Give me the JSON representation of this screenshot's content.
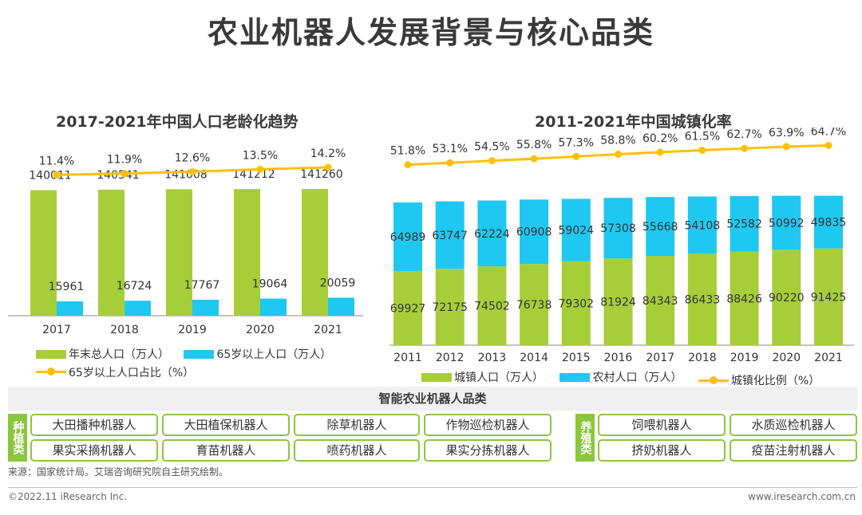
{
  "page": {
    "title": "农业机器人发展背景与核心品类",
    "source": "来源：国家统计局。艾瑞咨询研究院自主研究绘制。",
    "copyright": "©2022.11 iResearch Inc.",
    "website": "www.iresearch.com.cn"
  },
  "colors": {
    "green": "#a6ce39",
    "blue": "#1ec8f0",
    "yellow": "#ffc000",
    "dark_green": "#8cc63f"
  },
  "chart_data": [
    {
      "type": "bar",
      "title": "2017-2021年中国人口老龄化趋势",
      "categories": [
        "2017",
        "2018",
        "2019",
        "2020",
        "2021"
      ],
      "series": [
        {
          "name": "年末总人口（万人）",
          "kind": "bar",
          "values": [
            140011,
            140541,
            141008,
            141212,
            141260
          ]
        },
        {
          "name": "65岁以上人口（万人）",
          "kind": "bar",
          "values": [
            15961,
            16724,
            17767,
            19064,
            20059
          ]
        },
        {
          "name": "65岁以上人口占比（%）",
          "kind": "line",
          "values": [
            11.4,
            11.9,
            12.6,
            13.5,
            14.2
          ],
          "labels": [
            "11.4%",
            "11.9%",
            "12.6%",
            "13.5%",
            "14.2%"
          ]
        }
      ],
      "ylim": [
        0,
        160000
      ],
      "legend": "bottom"
    },
    {
      "type": "bar",
      "stacked": true,
      "title": "2011-2021年中国城镇化率",
      "categories": [
        "2011",
        "2012",
        "2013",
        "2014",
        "2015",
        "2016",
        "2017",
        "2018",
        "2019",
        "2020",
        "2021"
      ],
      "series": [
        {
          "name": "城镇人口（万人）",
          "kind": "bar",
          "values": [
            69927,
            72175,
            74502,
            76738,
            79302,
            81924,
            84343,
            86433,
            88426,
            90220,
            91425
          ]
        },
        {
          "name": "农村人口（万人）",
          "kind": "bar",
          "values": [
            64989,
            63747,
            62224,
            60908,
            59024,
            57308,
            55668,
            54108,
            52582,
            50992,
            49835
          ]
        },
        {
          "name": "城镇化比例（%）",
          "kind": "line",
          "values": [
            51.8,
            53.1,
            54.5,
            55.8,
            57.3,
            58.8,
            60.2,
            61.5,
            62.7,
            63.9,
            64.7
          ],
          "labels": [
            "51.8%",
            "53.1%",
            "54.5%",
            "55.8%",
            "57.3%",
            "58.8%",
            "60.2%",
            "61.5%",
            "62.7%",
            "63.9%",
            "64.7%"
          ]
        }
      ],
      "ylim": [
        0,
        165000
      ],
      "legend": "bottom"
    }
  ],
  "categories_section": {
    "title": "智能农业机器人品类",
    "planting": {
      "label": "种植类",
      "items": [
        "大田播种机器人",
        "大田植保机器人",
        "除草机器人",
        "作物巡检机器人",
        "果实采摘机器人",
        "育苗机器人",
        "喷药机器人",
        "果实分拣机器人"
      ]
    },
    "breeding": {
      "label": "养殖类",
      "items": [
        "饲喂机器人",
        "水质巡检机器人",
        "挤奶机器人",
        "疫苗注射机器人"
      ]
    }
  }
}
